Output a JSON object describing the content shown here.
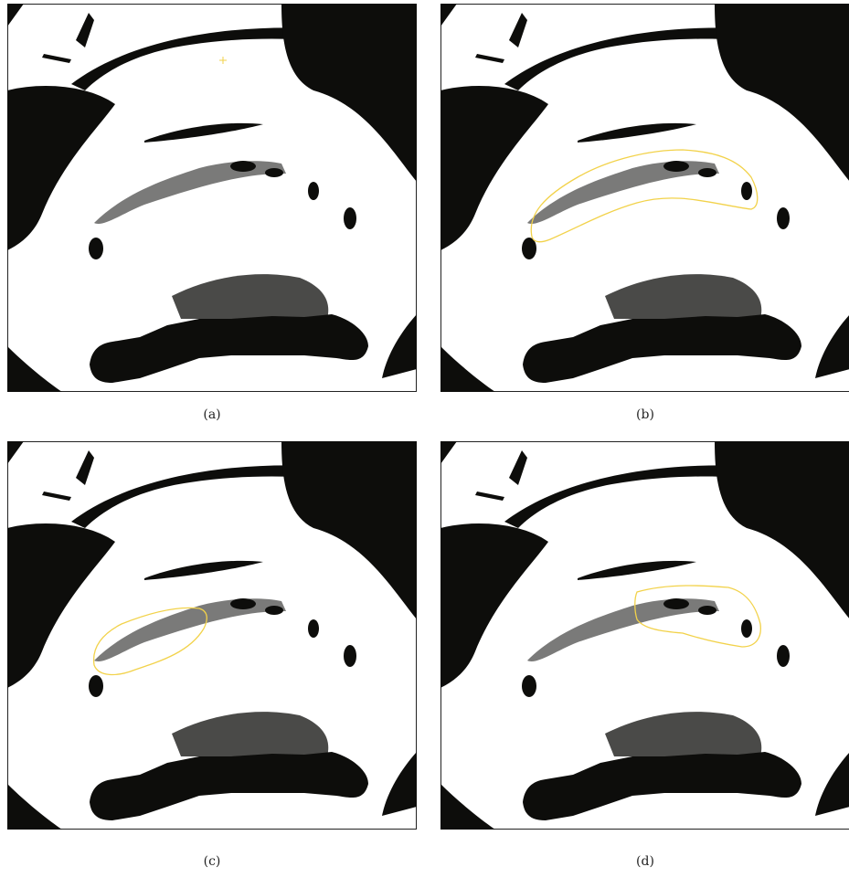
{
  "figure": {
    "panels": [
      {
        "id": "a",
        "caption": "(a)",
        "overlay": "seed-point"
      },
      {
        "id": "b",
        "caption": "(b)",
        "overlay": "full-contour"
      },
      {
        "id": "c",
        "caption": "(c)",
        "overlay": "left-contour"
      },
      {
        "id": "d",
        "caption": "(d)",
        "overlay": "right-contour"
      }
    ],
    "colors": {
      "background": "#ffffff",
      "foreground": "#0d0d0b",
      "contour": "#f2d24a",
      "border": "#222222"
    }
  }
}
